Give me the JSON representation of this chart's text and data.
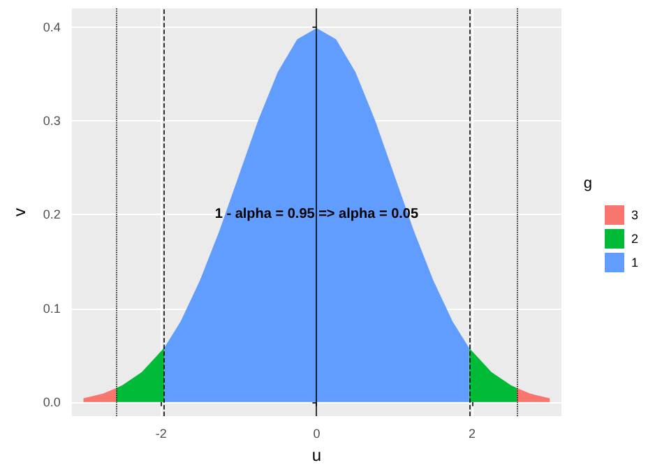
{
  "chart_data": {
    "type": "area",
    "xlabel": "u",
    "ylabel": "v",
    "legend_title": "g",
    "xlim": [
      -3.15,
      3.15
    ],
    "xticks": [
      -2,
      0,
      2
    ],
    "ylim": [
      -0.015,
      0.42
    ],
    "yticks": [
      {
        "value": 0,
        "label": "0.0"
      },
      {
        "value": 0.1,
        "label": "0.1"
      },
      {
        "value": 0.2,
        "label": "0.2"
      },
      {
        "value": 0.3,
        "label": "0.3"
      },
      {
        "value": 0.4,
        "label": "0.4"
      }
    ],
    "grid": true,
    "legend": "right",
    "marker": "none",
    "series": [
      {
        "name": "3",
        "color": "#f8766d",
        "x": [
          -3,
          -2.75,
          -2.576,
          0,
          2.576,
          2.75,
          3
        ],
        "values": [
          0.004,
          0.009,
          0.015,
          null,
          0.015,
          0.009,
          0.004
        ]
      },
      {
        "name": "2",
        "color": "#00ba38",
        "x": [
          -2.576,
          -2.5,
          -2.25,
          -1.96,
          0,
          1.96,
          2.25,
          2.5,
          2.576
        ],
        "values": [
          0.015,
          0.018,
          0.032,
          0.058,
          null,
          0.058,
          0.032,
          0.018,
          0.015
        ]
      },
      {
        "name": "1",
        "color": "#619cff",
        "x": [
          -1.96,
          -1.75,
          -1.5,
          -1.25,
          -1,
          -0.75,
          -0.5,
          -0.25,
          0,
          0.25,
          0.5,
          0.75,
          1,
          1.25,
          1.5,
          1.75,
          1.96
        ],
        "values": [
          0.058,
          0.086,
          0.13,
          0.183,
          0.242,
          0.301,
          0.352,
          0.387,
          0.399,
          0.387,
          0.352,
          0.301,
          0.242,
          0.183,
          0.13,
          0.086,
          0.058
        ]
      }
    ],
    "ref_lines": [
      {
        "axis": "x",
        "value": -2.576,
        "color": "#000000",
        "line_style": "dotted"
      },
      {
        "axis": "x",
        "value": -1.96,
        "color": "#000000",
        "line_style": "dashed"
      },
      {
        "axis": "x",
        "value": 0,
        "color": "#000000",
        "line_style": "solid"
      },
      {
        "axis": "x",
        "value": 1.96,
        "color": "#000000",
        "line_style": "dashed"
      },
      {
        "axis": "x",
        "value": 2.576,
        "color": "#000000",
        "line_style": "dotted"
      }
    ],
    "annotations": [
      {
        "text": "1 - alpha = 0.95 => alpha = 0.05",
        "x": 0,
        "y": 0.2
      }
    ]
  }
}
